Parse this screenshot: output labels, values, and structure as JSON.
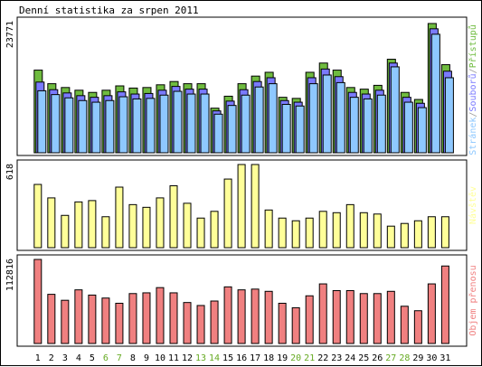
{
  "title": "Denní statistika za srpen 2011",
  "colors": {
    "accesses": "#6fbb3f",
    "files": "#7a7aff",
    "pages": "#8ec8ff",
    "visits": "#ffff99",
    "volume": "#f08080",
    "weekend_day_label": "#66aa22",
    "outline": "#000000"
  },
  "chart_data": [
    {
      "type": "bar",
      "ylabel": "23771",
      "legend": [
        "Stránek",
        "Souborů",
        "Přístupů"
      ],
      "ylim": [
        0,
        23771
      ],
      "grid": false,
      "legend_placement": "right, vertical",
      "categories": [
        "1",
        "2",
        "3",
        "4",
        "5",
        "6",
        "7",
        "8",
        "9",
        "10",
        "11",
        "12",
        "13",
        "14",
        "15",
        "16",
        "17",
        "18",
        "19",
        "20",
        "21",
        "22",
        "23",
        "24",
        "25",
        "26",
        "27",
        "28",
        "29",
        "30",
        "31"
      ],
      "weekend_days": [
        "6",
        "7",
        "13",
        "14",
        "20",
        "21",
        "27",
        "28"
      ],
      "series": [
        {
          "name": "Přístupů",
          "values": [
            15200,
            12700,
            12000,
            11500,
            11100,
            11500,
            12300,
            11900,
            12000,
            12500,
            13100,
            12700,
            12700,
            8200,
            10400,
            12700,
            14100,
            14800,
            10200,
            10000,
            14800,
            16500,
            15200,
            12000,
            11700,
            12400,
            17200,
            11100,
            9800,
            23771,
            16200
          ]
        },
        {
          "name": "Souborů",
          "values": [
            13000,
            11600,
            11000,
            10500,
            10200,
            10500,
            11200,
            10800,
            10900,
            11500,
            12200,
            11700,
            11700,
            7700,
            9500,
            11600,
            13100,
            13800,
            9600,
            9300,
            13800,
            15400,
            14000,
            11100,
            10800,
            11500,
            16500,
            10200,
            9100,
            22800,
            15000
          ]
        },
        {
          "name": "Stránek",
          "values": [
            11400,
            10700,
            10100,
            9600,
            9300,
            9600,
            10300,
            9900,
            10000,
            10600,
            11300,
            10800,
            10800,
            7100,
            8700,
            10600,
            12100,
            12700,
            8900,
            8600,
            12700,
            14300,
            12900,
            10200,
            9900,
            10600,
            15800,
            9300,
            8300,
            21800,
            13800
          ]
        }
      ]
    },
    {
      "type": "bar",
      "ylabel": "618",
      "legend": [
        "Návštěv"
      ],
      "ylim": [
        0,
        618
      ],
      "grid": false,
      "legend_placement": "right, vertical",
      "categories": [
        "1",
        "2",
        "3",
        "4",
        "5",
        "6",
        "7",
        "8",
        "9",
        "10",
        "11",
        "12",
        "13",
        "14",
        "15",
        "16",
        "17",
        "18",
        "19",
        "20",
        "21",
        "22",
        "23",
        "24",
        "25",
        "26",
        "27",
        "28",
        "29",
        "30",
        "31"
      ],
      "series": [
        {
          "name": "Návštěv",
          "values": [
            470,
            370,
            240,
            340,
            350,
            230,
            450,
            320,
            300,
            370,
            460,
            330,
            220,
            270,
            510,
            618,
            618,
            280,
            220,
            200,
            220,
            270,
            260,
            320,
            260,
            250,
            160,
            180,
            200,
            230,
            230
          ]
        }
      ]
    },
    {
      "type": "bar",
      "ylabel": "112816",
      "legend": [
        "Objem přenosu"
      ],
      "ylim": [
        0,
        112816
      ],
      "grid": false,
      "legend_placement": "right, vertical",
      "categories": [
        "1",
        "2",
        "3",
        "4",
        "5",
        "6",
        "7",
        "8",
        "9",
        "10",
        "11",
        "12",
        "13",
        "14",
        "15",
        "16",
        "17",
        "18",
        "19",
        "20",
        "21",
        "22",
        "23",
        "24",
        "25",
        "26",
        "27",
        "28",
        "29",
        "30",
        "31"
      ],
      "series": [
        {
          "name": "Objem přenosu",
          "values": [
            112816,
            66000,
            58000,
            72000,
            65000,
            61000,
            54000,
            67000,
            68000,
            75000,
            68000,
            55000,
            51000,
            57000,
            76000,
            72000,
            73000,
            70000,
            54000,
            48000,
            64000,
            80000,
            71000,
            71000,
            67000,
            67000,
            70000,
            50000,
            44000,
            80000,
            104000
          ]
        }
      ]
    }
  ]
}
